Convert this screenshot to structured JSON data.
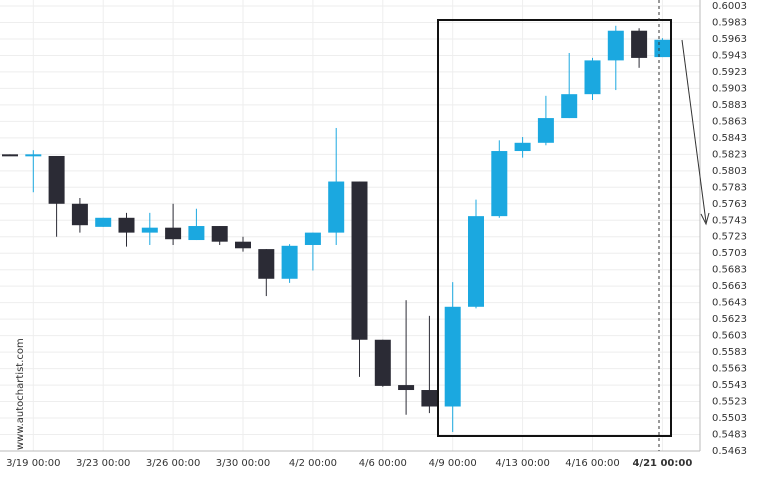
{
  "chart_data": {
    "type": "candlestick",
    "watermark": "www.autochartist.com",
    "categories": [
      null,
      "3/19 00:00",
      null,
      null,
      "3/23 00:00",
      null,
      null,
      "3/26 00:00",
      null,
      null,
      "3/30 00:00",
      null,
      null,
      "4/2 00:00",
      null,
      null,
      "4/6 00:00",
      null,
      null,
      "4/9 00:00",
      null,
      null,
      "4/13 00:00",
      null,
      null,
      "4/16 00:00",
      null,
      null,
      "4/21 00:00"
    ],
    "open": [
      0.5823,
      0.5822,
      0.5821,
      0.5763,
      0.5735,
      0.5746,
      0.5728,
      0.5734,
      0.5719,
      0.5736,
      0.5717,
      0.5708,
      0.5672,
      0.5713,
      0.5728,
      0.579,
      0.5598,
      0.5543,
      0.5537,
      0.5517,
      0.5638,
      0.5748,
      0.5827,
      0.5837,
      0.5867,
      0.5896,
      0.5937,
      0.5973,
      0.5941
    ],
    "high": [
      0.5823,
      0.5828,
      0.5821,
      0.577,
      0.5746,
      0.5752,
      0.5752,
      0.5763,
      0.5757,
      0.5736,
      0.5723,
      0.5708,
      0.5714,
      0.5728,
      0.5855,
      0.579,
      0.5598,
      0.5646,
      0.5627,
      0.5668,
      0.5768,
      0.584,
      0.5844,
      0.5894,
      0.5946,
      0.594,
      0.5979,
      0.5976,
      0.5964
    ],
    "low": [
      0.5821,
      0.5777,
      0.5723,
      0.5728,
      0.5735,
      0.5711,
      0.5713,
      0.5713,
      0.5719,
      0.5713,
      0.5705,
      0.5651,
      0.5667,
      0.5682,
      0.5713,
      0.5553,
      0.5541,
      0.5507,
      0.5509,
      0.5486,
      0.5636,
      0.5746,
      0.5819,
      0.5834,
      0.5867,
      0.5889,
      0.5901,
      0.5928,
      0.5941
    ],
    "close": [
      0.5821,
      0.5823,
      0.5763,
      0.5737,
      0.5746,
      0.5728,
      0.5734,
      0.572,
      0.5736,
      0.5717,
      0.5709,
      0.5672,
      0.5712,
      0.5728,
      0.579,
      0.5598,
      0.5542,
      0.5537,
      0.5517,
      0.5638,
      0.5748,
      0.5827,
      0.5837,
      0.5867,
      0.5896,
      0.5937,
      0.5973,
      0.594,
      0.5962
    ],
    "up_color": "#1ba8e0",
    "down_color": "#2b2b35",
    "ylim": [
      0.5463,
      0.6003
    ],
    "yticks": [
      0.5463,
      0.5483,
      0.5503,
      0.5523,
      0.5543,
      0.5563,
      0.5583,
      0.5603,
      0.5623,
      0.5643,
      0.5663,
      0.5683,
      0.5703,
      0.5723,
      0.5743,
      0.5763,
      0.5783,
      0.5803,
      0.5823,
      0.5843,
      0.5863,
      0.5883,
      0.5903,
      0.5923,
      0.5943,
      0.5963,
      0.5983,
      0.6003
    ],
    "grid": true
  }
}
